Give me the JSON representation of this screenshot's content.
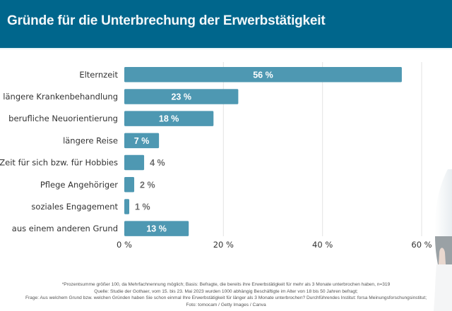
{
  "header": {
    "title": "Gründe für die Unterbrechung der Erwerbstätigkeit"
  },
  "chart_data": {
    "type": "bar",
    "orientation": "horizontal",
    "title": "Gründe für die Unterbrechung der Erwerbstätigkeit",
    "xlabel": "",
    "ylabel": "",
    "categories": [
      "Elternzeit",
      "längere Krankenbehandlung",
      "berufliche Neuorientierung",
      "längere Reise",
      "Zeit für sich bzw. für Hobbies",
      "Pflege Angehöriger",
      "soziales Engagement",
      "aus einem anderen Grund"
    ],
    "values": [
      56,
      23,
      18,
      7,
      4,
      2,
      1,
      13
    ],
    "value_labels": [
      "56 %",
      "23 %",
      "18 %",
      "7 %",
      "4 %",
      "2 %",
      "1 %",
      "13 %"
    ],
    "xlim": [
      0,
      60
    ],
    "x_ticks": [
      0,
      20,
      40,
      60
    ],
    "x_tick_labels": [
      "0 %",
      "20 %",
      "40 %",
      "60 %"
    ],
    "grid": true,
    "legend": "none",
    "bar_color": "#4e98b2"
  },
  "footnotes": [
    "*Prozentsumme größer 100, da Mehrfachnennung möglich; Basis: Befragte, die bereits ihre Erwerbstätigkeit für mehr als 3 Monate unterbrochen haben, n=319",
    "Quelle: Studie der Gothaer, vom 15. bis 23. Mai 2023 wurden 1000 abhängig Beschäftigte im Alter von 18 bis 50 Jahren befragt;",
    "Frage: Aus welchem Grund bzw. welchen Gründen haben Sie schon einmal Ihre Erwerbstätigkeit für länger als 3 Monate unterbrochen? Durchführendes Institut: forsa Meinungsforschungsinstitut;",
    "Foto: tomocam / Getty Images / Canva"
  ],
  "colors": {
    "header_bg": "#00668c",
    "bar": "#4e98b2",
    "grid": "#e3e3e3"
  }
}
